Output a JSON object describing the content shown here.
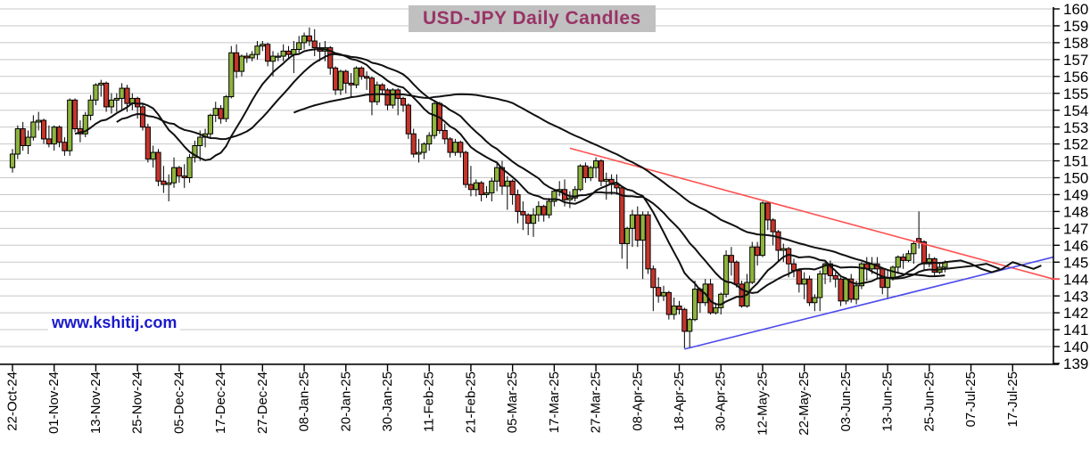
{
  "title": "USD-JPY Daily Candles",
  "watermark": "www.kshitij.com",
  "colors": {
    "bull": "#8eb43e",
    "bear": "#c5352c",
    "wick": "#000000",
    "ma": "#101010",
    "trend_down": "#ff5050",
    "trend_up": "#4b4bee",
    "grid": "#c8c8c8",
    "axis": "#000000",
    "title_bg": "#c0c0c0",
    "title_fg": "#993366",
    "watermark_fg": "#1a1acc"
  },
  "chart_data": {
    "type": "candlestick",
    "title": "USD-JPY Daily Candles",
    "xlabel": "",
    "ylabel": "",
    "ylim": [
      139,
      160
    ],
    "grid": "horizontal",
    "legend": "none",
    "y_ticks": [
      160,
      159,
      158,
      157,
      156,
      155,
      154,
      153,
      152,
      151,
      150,
      149,
      148,
      147,
      146,
      145,
      144,
      143,
      142,
      141,
      140,
      139
    ],
    "x_tick_labels": [
      "22-Oct-24",
      "01-Nov-24",
      "13-Nov-24",
      "25-Nov-24",
      "05-Dec-24",
      "17-Dec-24",
      "27-Dec-24",
      "08-Jan-25",
      "20-Jan-25",
      "30-Jan-25",
      "11-Feb-25",
      "21-Feb-25",
      "05-Mar-25",
      "17-Mar-25",
      "27-Mar-25",
      "08-Apr-25",
      "18-Apr-25",
      "30-Apr-25",
      "12-May-25",
      "22-May-25",
      "03-Jun-25",
      "13-Jun-25",
      "25-Jun-25",
      "07-Jul-25",
      "17-Jul-25"
    ],
    "x_tick_step_days": 8,
    "moving_average_periods": [
      13,
      21,
      55
    ],
    "ma_forecast_tails": [
      {
        "name": "short-ma-projection",
        "points": [
          [
            179,
            145.0
          ],
          [
            182,
            145.1
          ],
          [
            184,
            144.9
          ],
          [
            186,
            144.6
          ],
          [
            188,
            144.4
          ],
          [
            190,
            144.6
          ],
          [
            192,
            145.0
          ],
          [
            194,
            144.8
          ],
          [
            196,
            144.6
          ],
          [
            197.5,
            144.8
          ]
        ]
      },
      {
        "name": "medium-ma-projection",
        "points": [
          [
            179,
            144.6
          ],
          [
            182,
            144.7
          ],
          [
            185,
            144.8
          ],
          [
            187,
            144.9
          ],
          [
            189.5,
            144.6
          ]
        ]
      }
    ],
    "trendlines": [
      {
        "name": "falling-resistance",
        "color_key": "trend_down",
        "from_day": 107,
        "from_price": 151.75,
        "to_day": 200,
        "to_price": 144.0
      },
      {
        "name": "rising-support",
        "color_key": "trend_up",
        "from_day": 129,
        "from_price": 139.85,
        "to_day": 200,
        "to_price": 145.3
      }
    ],
    "axis_marker": {
      "price": 144.0,
      "color_key": "trend_down"
    },
    "candles": [
      [
        "22-Oct",
        150.6,
        151.7,
        150.3,
        151.4
      ],
      [
        "23-Oct",
        151.4,
        153.1,
        151.1,
        152.9
      ],
      [
        "24-Oct",
        152.9,
        153.3,
        151.6,
        151.9
      ],
      [
        "25-Oct",
        151.9,
        152.8,
        151.4,
        152.4
      ],
      [
        "28-Oct",
        152.4,
        153.7,
        152.2,
        153.3
      ],
      [
        "29-Oct",
        153.3,
        153.9,
        152.8,
        153.4
      ],
      [
        "30-Oct",
        153.4,
        153.5,
        152.0,
        152.3
      ],
      [
        "31-Oct",
        152.3,
        153.1,
        151.8,
        152.0
      ],
      [
        "01-Nov",
        152.0,
        153.1,
        151.6,
        153.0
      ],
      [
        "04-Nov",
        153.0,
        153.1,
        151.8,
        152.1
      ],
      [
        "05-Nov",
        152.1,
        152.4,
        151.3,
        151.6
      ],
      [
        "06-Nov",
        151.6,
        154.7,
        151.3,
        154.6
      ],
      [
        "07-Nov",
        154.6,
        154.7,
        152.7,
        152.9
      ],
      [
        "08-Nov",
        152.9,
        153.4,
        152.1,
        152.6
      ],
      [
        "11-Nov",
        152.6,
        153.9,
        152.4,
        153.7
      ],
      [
        "12-Nov",
        153.7,
        154.9,
        153.4,
        154.6
      ],
      [
        "13-Nov",
        154.6,
        155.6,
        154.3,
        155.5
      ],
      [
        "14-Nov",
        155.5,
        155.8,
        154.8,
        155.6
      ],
      [
        "15-Nov",
        155.6,
        155.7,
        153.9,
        154.2
      ],
      [
        "18-Nov",
        154.2,
        155.0,
        153.8,
        154.6
      ],
      [
        "19-Nov",
        154.6,
        155.0,
        153.9,
        154.7
      ],
      [
        "20-Nov",
        154.7,
        155.6,
        154.0,
        155.3
      ],
      [
        "21-Nov",
        155.3,
        155.5,
        153.9,
        154.4
      ],
      [
        "22-Nov",
        154.4,
        155.0,
        154.0,
        154.7
      ],
      [
        "25-Nov",
        154.7,
        154.8,
        153.5,
        154.2
      ],
      [
        "26-Nov",
        154.2,
        154.4,
        152.8,
        153.0
      ],
      [
        "27-Nov",
        153.0,
        153.2,
        150.9,
        151.1
      ],
      [
        "28-Nov",
        151.1,
        151.9,
        150.6,
        151.5
      ],
      [
        "29-Nov",
        151.5,
        151.7,
        149.5,
        149.8
      ],
      [
        "02-Dec",
        149.8,
        150.7,
        149.1,
        149.6
      ],
      [
        "03-Dec",
        149.6,
        150.2,
        148.6,
        149.7
      ],
      [
        "04-Dec",
        149.7,
        151.2,
        149.4,
        150.6
      ],
      [
        "05-Dec",
        150.6,
        150.7,
        149.7,
        150.1
      ],
      [
        "06-Dec",
        150.1,
        150.8,
        149.4,
        150.0
      ],
      [
        "09-Dec",
        150.0,
        151.4,
        149.7,
        151.2
      ],
      [
        "10-Dec",
        151.2,
        152.2,
        150.9,
        151.9
      ],
      [
        "11-Dec",
        151.9,
        152.8,
        151.0,
        152.4
      ],
      [
        "12-Dec",
        152.4,
        152.9,
        151.8,
        152.6
      ],
      [
        "13-Dec",
        152.6,
        153.8,
        152.4,
        153.7
      ],
      [
        "16-Dec",
        153.7,
        154.5,
        153.3,
        154.1
      ],
      [
        "17-Dec",
        154.1,
        154.3,
        153.2,
        153.5
      ],
      [
        "18-Dec",
        153.5,
        154.9,
        153.3,
        154.8
      ],
      [
        "19-Dec",
        154.8,
        157.8,
        154.7,
        157.4
      ],
      [
        "20-Dec",
        157.4,
        157.9,
        155.9,
        156.3
      ],
      [
        "23-Dec",
        156.3,
        157.3,
        156.0,
        157.2
      ],
      [
        "24-Dec",
        157.2,
        157.4,
        156.8,
        157.1
      ],
      [
        "25-Dec",
        157.1,
        157.5,
        156.9,
        157.3
      ],
      [
        "26-Dec",
        157.3,
        158.1,
        157.0,
        157.8
      ],
      [
        "27-Dec",
        157.8,
        158.1,
        157.5,
        157.9
      ],
      [
        "30-Dec",
        157.9,
        158.0,
        156.6,
        156.9
      ],
      [
        "31-Dec",
        156.9,
        157.5,
        156.0,
        157.2
      ],
      [
        "01-Jan",
        157.2,
        157.4,
        156.9,
        157.2
      ],
      [
        "02-Jan",
        157.2,
        157.9,
        156.9,
        157.5
      ],
      [
        "03-Jan",
        157.5,
        157.8,
        157.0,
        157.3
      ],
      [
        "06-Jan",
        157.3,
        158.1,
        156.2,
        157.6
      ],
      [
        "07-Jan",
        157.6,
        158.4,
        157.4,
        158.0
      ],
      [
        "08-Jan",
        158.0,
        158.6,
        157.6,
        158.4
      ],
      [
        "09-Jan",
        158.4,
        158.9,
        157.8,
        158.1
      ],
      [
        "10-Jan",
        158.1,
        158.8,
        157.2,
        157.7
      ],
      [
        "13-Jan",
        157.7,
        158.0,
        156.9,
        157.5
      ],
      [
        "14-Jan",
        157.5,
        158.1,
        156.9,
        157.7
      ],
      [
        "15-Jan",
        157.7,
        157.8,
        156.1,
        156.5
      ],
      [
        "16-Jan",
        156.5,
        156.6,
        154.9,
        155.2
      ],
      [
        "17-Jan",
        155.2,
        156.4,
        154.9,
        156.3
      ],
      [
        "20-Jan",
        156.3,
        156.4,
        155.0,
        155.6
      ],
      [
        "21-Jan",
        155.6,
        156.2,
        154.8,
        155.5
      ],
      [
        "22-Jan",
        155.5,
        156.6,
        155.3,
        156.5
      ],
      [
        "23-Jan",
        156.5,
        156.6,
        155.8,
        156.0
      ],
      [
        "24-Jan",
        156.0,
        156.3,
        155.2,
        155.9
      ],
      [
        "27-Jan",
        155.9,
        156.0,
        153.7,
        154.5
      ],
      [
        "28-Jan",
        154.5,
        155.7,
        154.3,
        155.5
      ],
      [
        "29-Jan",
        155.5,
        155.6,
        154.9,
        155.2
      ],
      [
        "30-Jan",
        155.2,
        155.3,
        154.0,
        154.3
      ],
      [
        "31-Jan",
        154.3,
        155.3,
        154.1,
        155.2
      ],
      [
        "03-Feb",
        155.2,
        155.3,
        153.7,
        154.7
      ],
      [
        "04-Feb",
        154.7,
        154.8,
        153.9,
        154.3
      ],
      [
        "05-Feb",
        154.3,
        154.4,
        152.3,
        152.6
      ],
      [
        "06-Feb",
        152.6,
        152.9,
        151.2,
        151.4
      ],
      [
        "07-Feb",
        151.4,
        152.3,
        150.9,
        151.5
      ],
      [
        "10-Feb",
        151.5,
        152.1,
        151.1,
        152.0
      ],
      [
        "11-Feb",
        152.0,
        152.7,
        151.6,
        152.5
      ],
      [
        "12-Feb",
        152.5,
        154.5,
        152.3,
        154.4
      ],
      [
        "13-Feb",
        154.4,
        154.5,
        152.6,
        152.8
      ],
      [
        "14-Feb",
        152.8,
        153.2,
        152.0,
        152.3
      ],
      [
        "17-Feb",
        152.3,
        152.4,
        151.2,
        151.5
      ],
      [
        "18-Feb",
        151.5,
        152.3,
        151.3,
        152.1
      ],
      [
        "19-Feb",
        152.1,
        152.2,
        151.2,
        151.5
      ],
      [
        "20-Feb",
        151.5,
        151.6,
        149.4,
        149.6
      ],
      [
        "21-Feb",
        149.6,
        150.7,
        148.9,
        149.3
      ],
      [
        "24-Feb",
        149.3,
        149.9,
        148.9,
        149.7
      ],
      [
        "25-Feb",
        149.7,
        149.8,
        148.6,
        149.0
      ],
      [
        "26-Feb",
        149.0,
        149.5,
        148.8,
        149.1
      ],
      [
        "27-Feb",
        149.1,
        150.0,
        148.6,
        149.8
      ],
      [
        "28-Feb",
        149.8,
        150.9,
        149.2,
        150.6
      ],
      [
        "03-Mar",
        150.6,
        151.0,
        149.0,
        149.5
      ],
      [
        "04-Mar",
        149.5,
        150.1,
        148.1,
        149.8
      ],
      [
        "05-Mar",
        149.8,
        149.9,
        148.4,
        149.0
      ],
      [
        "06-Mar",
        149.0,
        149.3,
        147.3,
        148.0
      ],
      [
        "07-Mar",
        148.0,
        148.6,
        146.9,
        147.8
      ],
      [
        "10-Mar",
        147.8,
        147.9,
        146.6,
        147.3
      ],
      [
        "11-Mar",
        147.3,
        148.2,
        146.5,
        147.8
      ],
      [
        "12-Mar",
        147.8,
        148.6,
        147.4,
        148.3
      ],
      [
        "13-Mar",
        148.3,
        148.4,
        147.4,
        147.8
      ],
      [
        "14-Mar",
        147.8,
        148.8,
        147.6,
        148.6
      ],
      [
        "17-Mar",
        148.6,
        149.3,
        148.3,
        149.2
      ],
      [
        "18-Mar",
        149.2,
        149.8,
        148.9,
        149.3
      ],
      [
        "19-Mar",
        149.3,
        149.9,
        148.3,
        148.7
      ],
      [
        "20-Mar",
        148.7,
        149.2,
        148.2,
        148.8
      ],
      [
        "21-Mar",
        148.8,
        149.5,
        148.6,
        149.3
      ],
      [
        "24-Mar",
        149.3,
        150.8,
        149.2,
        150.7
      ],
      [
        "25-Mar",
        150.7,
        150.9,
        149.7,
        150.0
      ],
      [
        "26-Mar",
        150.0,
        150.7,
        149.8,
        150.6
      ],
      [
        "27-Mar",
        150.6,
        151.2,
        150.0,
        151.0
      ],
      [
        "28-Mar",
        151.0,
        151.1,
        149.5,
        149.8
      ],
      [
        "31-Mar",
        149.8,
        150.3,
        148.7,
        149.9
      ],
      [
        "01-Apr",
        149.9,
        150.2,
        149.0,
        149.6
      ],
      [
        "02-Apr",
        149.6,
        150.2,
        149.0,
        149.4
      ],
      [
        "03-Apr",
        149.4,
        149.5,
        145.2,
        146.1
      ],
      [
        "04-Apr",
        146.1,
        147.1,
        144.6,
        147.0
      ],
      [
        "07-Apr",
        147.0,
        148.1,
        145.9,
        147.8
      ],
      [
        "08-Apr",
        147.8,
        148.3,
        145.9,
        146.3
      ],
      [
        "09-Apr",
        146.3,
        148.0,
        144.0,
        147.8
      ],
      [
        "10-Apr",
        147.8,
        148.0,
        144.3,
        144.6
      ],
      [
        "11-Apr",
        144.6,
        144.8,
        142.1,
        143.5
      ],
      [
        "14-Apr",
        143.5,
        144.1,
        142.6,
        143.0
      ],
      [
        "15-Apr",
        143.0,
        143.6,
        142.7,
        143.2
      ],
      [
        "16-Apr",
        143.2,
        143.3,
        141.6,
        141.9
      ],
      [
        "17-Apr",
        141.9,
        142.9,
        141.6,
        142.4
      ],
      [
        "18-Apr",
        142.4,
        142.7,
        141.9,
        142.2
      ],
      [
        "21-Apr",
        142.2,
        142.3,
        139.9,
        140.9
      ],
      [
        "22-Apr",
        140.9,
        141.7,
        139.9,
        141.6
      ],
      [
        "23-Apr",
        141.6,
        143.9,
        141.5,
        143.4
      ],
      [
        "24-Apr",
        143.4,
        143.5,
        142.0,
        142.6
      ],
      [
        "25-Apr",
        142.6,
        144.0,
        142.4,
        143.7
      ],
      [
        "28-Apr",
        143.7,
        144.0,
        141.9,
        142.0
      ],
      [
        "29-Apr",
        142.0,
        142.6,
        141.9,
        142.3
      ],
      [
        "30-Apr",
        142.3,
        143.2,
        141.9,
        143.1
      ],
      [
        "01-May",
        143.1,
        145.7,
        142.9,
        145.4
      ],
      [
        "02-May",
        145.4,
        145.9,
        144.2,
        145.0
      ],
      [
        "05-May",
        145.0,
        145.1,
        143.5,
        143.7
      ],
      [
        "06-May",
        143.7,
        143.9,
        142.3,
        142.4
      ],
      [
        "07-May",
        142.4,
        144.3,
        142.3,
        143.8
      ],
      [
        "08-May",
        143.8,
        146.2,
        143.7,
        145.9
      ],
      [
        "09-May",
        145.9,
        146.2,
        144.8,
        145.4
      ],
      [
        "12-May",
        145.4,
        148.6,
        145.3,
        148.5
      ],
      [
        "13-May",
        148.5,
        148.6,
        146.9,
        147.5
      ],
      [
        "14-May",
        147.5,
        147.6,
        146.0,
        146.8
      ],
      [
        "15-May",
        146.8,
        146.9,
        145.0,
        145.7
      ],
      [
        "16-May",
        145.7,
        146.1,
        145.0,
        145.8
      ],
      [
        "19-May",
        145.8,
        145.9,
        144.1,
        144.9
      ],
      [
        "20-May",
        144.9,
        145.2,
        144.1,
        144.5
      ],
      [
        "21-May",
        144.5,
        144.6,
        143.2,
        143.7
      ],
      [
        "22-May",
        143.7,
        144.4,
        142.8,
        144.0
      ],
      [
        "23-May",
        144.0,
        144.2,
        142.4,
        142.6
      ],
      [
        "26-May",
        142.6,
        143.1,
        142.1,
        142.9
      ],
      [
        "27-May",
        142.9,
        144.5,
        142.1,
        144.3
      ],
      [
        "28-May",
        144.3,
        145.0,
        143.7,
        144.9
      ],
      [
        "29-May",
        144.9,
        145.1,
        143.8,
        144.2
      ],
      [
        "30-May",
        144.2,
        144.4,
        143.5,
        144.0
      ],
      [
        "02-Jun",
        144.0,
        144.1,
        142.4,
        142.7
      ],
      [
        "03-Jun",
        142.7,
        144.1,
        142.5,
        144.0
      ],
      [
        "04-Jun",
        144.0,
        144.3,
        142.6,
        142.8
      ],
      [
        "05-Jun",
        142.8,
        143.9,
        142.5,
        143.6
      ],
      [
        "06-Jun",
        143.6,
        145.0,
        143.4,
        144.9
      ],
      [
        "09-Jun",
        144.9,
        145.3,
        143.9,
        144.6
      ],
      [
        "10-Jun",
        144.6,
        145.3,
        144.3,
        144.9
      ],
      [
        "11-Jun",
        144.9,
        145.3,
        144.0,
        144.6
      ],
      [
        "12-Jun",
        144.6,
        144.7,
        143.1,
        143.5
      ],
      [
        "13-Jun",
        143.5,
        144.5,
        142.8,
        144.1
      ],
      [
        "16-Jun",
        144.1,
        144.8,
        143.9,
        144.7
      ],
      [
        "17-Jun",
        144.7,
        145.4,
        144.3,
        145.3
      ],
      [
        "18-Jun",
        145.3,
        145.5,
        144.6,
        145.1
      ],
      [
        "19-Jun",
        145.1,
        145.7,
        145.0,
        145.5
      ],
      [
        "20-Jun",
        145.5,
        146.2,
        144.9,
        146.1
      ],
      [
        "23-Jun",
        146.4,
        148.0,
        145.8,
        146.2
      ],
      [
        "24-Jun",
        146.2,
        146.3,
        144.5,
        144.9
      ],
      [
        "25-Jun",
        144.9,
        145.5,
        144.7,
        145.2
      ],
      [
        "26-Jun",
        145.2,
        145.3,
        144.2,
        144.4
      ],
      [
        "27-Jun",
        144.4,
        145.0,
        144.3,
        144.7
      ],
      [
        "30-Jun",
        144.7,
        145.1,
        144.4,
        145.0
      ]
    ]
  }
}
